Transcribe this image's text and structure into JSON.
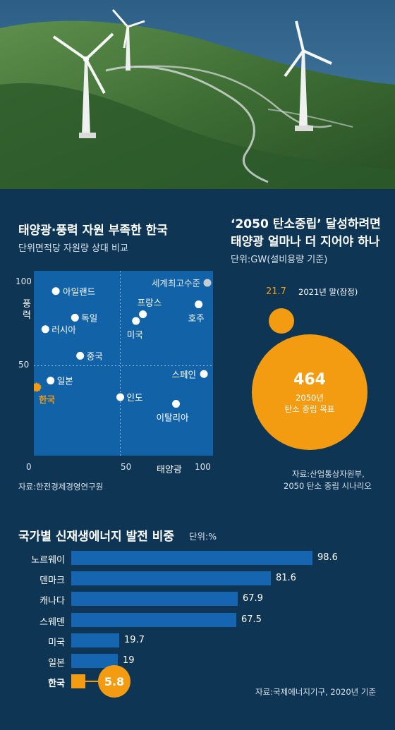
{
  "scatter": {
    "title": "태양광·풍력 자원 부족한 한국",
    "subtitle": "단위면적당 자원량 상대 비교",
    "source": "자료:한전경제경영연구원",
    "ylabel": "풍력",
    "xlabel": "태양광"
  },
  "target": {
    "title_line1": "‘2050 탄소중립’ 달성하려면",
    "title_line2": "태양광 얼마나 더 지어야 하나",
    "unit": "단위:GW(설비용량 기준)",
    "current_value": "21.7",
    "current_label": "2021년 말(잠정)",
    "goal_value": "464",
    "goal_label_line1": "2050년",
    "goal_label_line2": "탄소 중립 목표",
    "source_line1": "자료:산업통상자원부,",
    "source_line2": "2050 탄소 중립 시나리오"
  },
  "share": {
    "title": "국가별 신재생에너지 발전 비중",
    "unit": "단위:%",
    "source": "자료:국제에너지기구, 2020년 기준"
  },
  "colors": {
    "background": "#0e3553",
    "panel": "#1262a8",
    "bar": "#1565b0",
    "highlight": "#f39c12"
  },
  "chart_data": [
    {
      "type": "scatter",
      "title": "태양광·풍력 자원 부족한 한국",
      "xlabel": "태양광",
      "ylabel": "풍력",
      "xlim": [
        0,
        100
      ],
      "ylim": [
        0,
        100
      ],
      "xticks": [
        "0",
        "50",
        "100"
      ],
      "yticks": [
        "100",
        "50"
      ],
      "points": [
        {
          "name": "아일랜드",
          "x": 13,
          "y": 95
        },
        {
          "name": "세계최고수준",
          "x": 100,
          "y": 100
        },
        {
          "name": "프랑스",
          "x": 63,
          "y": 81
        },
        {
          "name": "미국",
          "x": 59,
          "y": 77
        },
        {
          "name": "호주",
          "x": 95,
          "y": 87
        },
        {
          "name": "독일",
          "x": 24,
          "y": 79
        },
        {
          "name": "러시아",
          "x": 7,
          "y": 72
        },
        {
          "name": "중국",
          "x": 27,
          "y": 56
        },
        {
          "name": "스페인",
          "x": 98,
          "y": 45
        },
        {
          "name": "일본",
          "x": 10,
          "y": 41
        },
        {
          "name": "한국",
          "x": 2,
          "y": 37
        },
        {
          "name": "인도",
          "x": 50,
          "y": 31
        },
        {
          "name": "이탈리아",
          "x": 82,
          "y": 27
        }
      ]
    },
    {
      "type": "bubble",
      "unit": "GW",
      "items": [
        {
          "label": "2021년 말(잠정)",
          "value": 21.7
        },
        {
          "label": "2050년 탄소 중립 목표",
          "value": 464
        }
      ]
    },
    {
      "type": "bar",
      "orientation": "horizontal",
      "title": "국가별 신재생에너지 발전 비중",
      "unit": "%",
      "categories": [
        "노르웨이",
        "덴마크",
        "캐나다",
        "스웨덴",
        "미국",
        "일본",
        "한국"
      ],
      "values": [
        98.6,
        81.6,
        67.9,
        67.5,
        19.7,
        19,
        5.8
      ],
      "value_labels": [
        "98.6",
        "81.6",
        "67.9",
        "67.5",
        "19.7",
        "19",
        "5.8"
      ],
      "highlight": "한국"
    }
  ]
}
